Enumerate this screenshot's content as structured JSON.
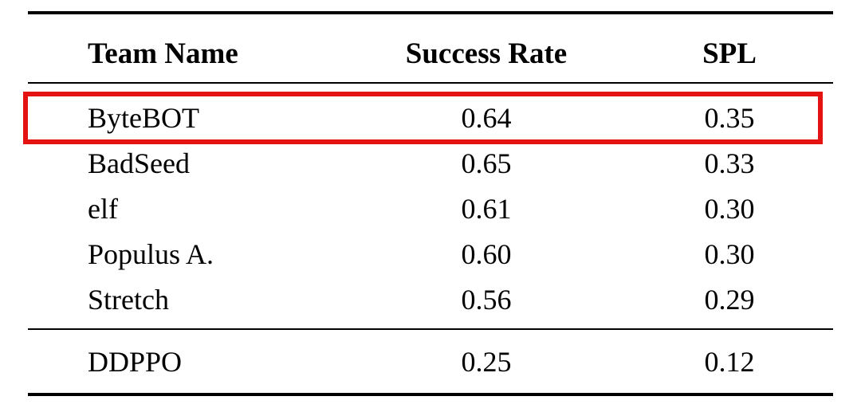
{
  "table": {
    "headers": {
      "team": "Team Name",
      "success_rate": "Success Rate",
      "spl": "SPL"
    },
    "main_rows": [
      {
        "team": "ByteBOT",
        "success_rate": "0.64",
        "spl": "0.35",
        "highlighted": true
      },
      {
        "team": "BadSeed",
        "success_rate": "0.65",
        "spl": "0.33",
        "highlighted": false
      },
      {
        "team": "elf",
        "success_rate": "0.61",
        "spl": "0.30",
        "highlighted": false
      },
      {
        "team": "Populus A.",
        "success_rate": "0.60",
        "spl": "0.30",
        "highlighted": false
      },
      {
        "team": "Stretch",
        "success_rate": "0.56",
        "spl": "0.29",
        "highlighted": false
      }
    ],
    "baseline_rows": [
      {
        "team": "DDPPO",
        "success_rate": "0.25",
        "spl": "0.12"
      }
    ]
  },
  "colors": {
    "highlight_red": "#e51212",
    "text": "#000000",
    "background": "#ffffff",
    "rule": "#000000"
  }
}
